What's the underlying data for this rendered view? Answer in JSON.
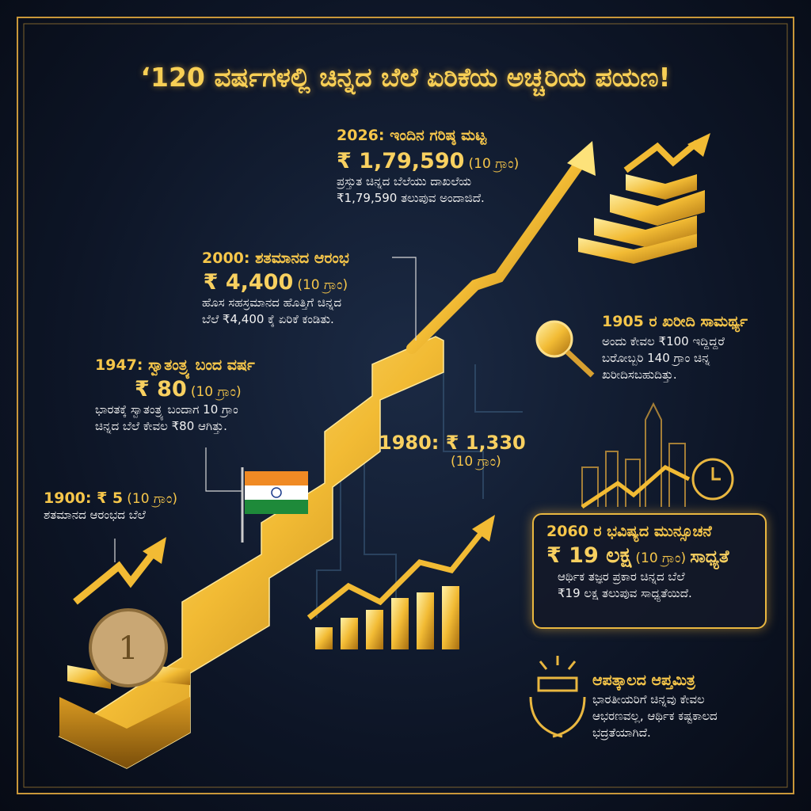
{
  "title": "‘120 ವರ್ಷಗಳಲ್ಲಿ ಚಿನ್ನದ ಬೆಲೆ ಏರಿಕೆಯ ಅಚ್ಚರಿಯ ಪಯಣ!",
  "milestones": {
    "y2026": {
      "heading": "2026: ಇಂದಿನ ಗರಿಷ್ಠ ಮಟ್ಟ",
      "price": "₹ 1,79,590",
      "unit": "(10 ಗ್ರಾಂ)",
      "lines": [
        "ಪ್ರಸ್ತುತ ಚಿನ್ನದ ಬೆಲೆಯು ದಾಖಲೆಯ",
        "₹1,79,590 ತಲುಪುವ ಅಂದಾಜಿದೆ."
      ]
    },
    "y2000": {
      "heading": "2000: ಶತಮಾನದ ಆರಂಭ",
      "price": "₹ 4,400",
      "unit": "(10 ಗ್ರಾಂ)",
      "lines": [
        "ಹೊಸ ಸಹಸ್ರಮಾನದ ಹೊತ್ತಿಗೆ ಚಿನ್ನದ",
        "ಬೆಲೆ ₹4,400 ಕ್ಕೆ ಏರಿಕೆ ಕಂಡಿತು."
      ]
    },
    "y1947": {
      "heading": "1947: ಸ್ವಾತಂತ್ರ್ಯ ಬಂದ ವರ್ಷ",
      "price": "₹ 80",
      "unit": "(10 ಗ್ರಾಂ)",
      "lines": [
        "ಭಾರತಕ್ಕೆ ಸ್ವಾತಂತ್ರ್ಯ ಬಂದಾಗ 10 ಗ್ರಾಂ",
        "ಚಿನ್ನದ ಬೆಲೆ ಕೇವಲ ₹80 ಆಗಿತ್ತು."
      ]
    },
    "y1900": {
      "heading": "1900: ₹ 5",
      "unit": "(10 ಗ್ರಾಂ)",
      "lines": [
        "ಶತಮಾನದ ಆರಂಭದ ಬೆಲೆ"
      ]
    },
    "y1980": {
      "heading": "1980: ₹ 1,330",
      "unit": "(10 ಗ್ರಾಂ)"
    }
  },
  "purchasing_power": {
    "heading": "1905 ರ ಖರೀದಿ ಸಾಮರ್ಥ್ಯ",
    "lines": [
      "ಅಂದು ಕೇವಲ ₹100 ಇದ್ದಿದ್ದರೆ",
      "ಬರೋಬ್ಬರಿ 140 ಗ್ರಾಂ ಚಿನ್ನ",
      "ಖರೀದಿಸಬಹುದಿತ್ತು."
    ]
  },
  "forecast": {
    "heading": "2060 ರ ಭವಿಷ್ಯದ ಮುನ್ಸೂಚನೆ",
    "price": "₹ 19 ಲಕ್ಷ",
    "unit": "(10 ಗ್ರಾಂ)",
    "suffix": "ಸಾಧ್ಯತೆ",
    "lines": [
      "ಆರ್ಥಿಕ ತಜ್ಞರ ಪ್ರಕಾರ ಚಿನ್ನದ ಬೆಲೆ",
      "₹19 ಲಕ್ಷ ತಲುಪುವ ಸಾಧ್ಯತೆಯಿದೆ."
    ]
  },
  "footer_note": {
    "heading": "ಆಪತ್ಕಾಲದ ಆಪ್ತಮಿತ್ರ",
    "lines": [
      "ಭಾರತೀಯರಿಗೆ ಚಿನ್ನವು ಕೇವಲ",
      "ಆಭರಣವಲ್ಲ, ಆರ್ಥಿಕ ಕಷ್ಟಕಾಲದ",
      "ಭದ್ರತೆಯಾಗಿದೆ."
    ]
  },
  "coin": {
    "label": "1"
  }
}
